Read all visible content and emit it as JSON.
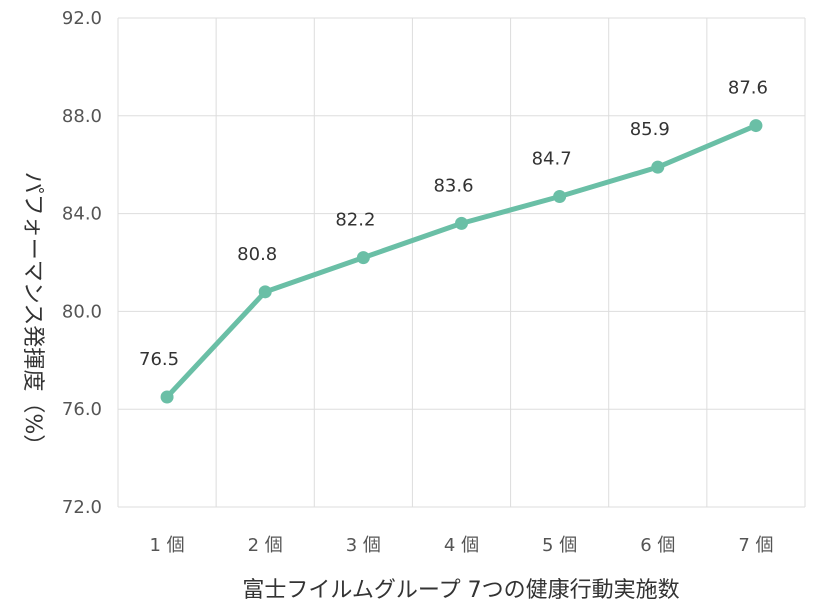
{
  "chart_data": {
    "type": "line",
    "title": "",
    "xlabel": "富士フイルムグループ 7つの健康行動実施数",
    "ylabel": "パフォーマンス発揮度（%）",
    "categories": [
      "1 個",
      "2 個",
      "3 個",
      "4 個",
      "5 個",
      "6 個",
      "7 個"
    ],
    "series": [
      {
        "values": [
          76.5,
          80.8,
          82.2,
          83.6,
          84.7,
          85.9,
          87.6
        ],
        "labels": [
          "76.5",
          "80.8",
          "82.2",
          "83.6",
          "84.7",
          "85.9",
          "87.6"
        ]
      }
    ],
    "ylim": [
      72,
      92
    ],
    "yticks": [
      "72.0",
      "76.0",
      "80.0",
      "84.0",
      "88.0",
      "92.0"
    ],
    "grid": true,
    "legend": "none",
    "colors": {
      "line": "#6abfa6",
      "grid": "#dddddd"
    }
  }
}
